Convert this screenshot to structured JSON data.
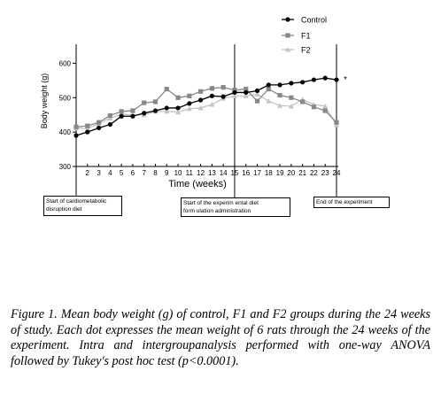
{
  "chart_data": {
    "type": "line",
    "xlabel": "Time (weeks)",
    "ylabel": "Body weight (g)",
    "ylim": [
      300,
      650
    ],
    "yticks": [
      300,
      400,
      500,
      600
    ],
    "x": [
      1,
      2,
      3,
      4,
      5,
      6,
      7,
      8,
      9,
      10,
      11,
      12,
      13,
      14,
      15,
      16,
      17,
      18,
      19,
      20,
      21,
      22,
      23,
      24
    ],
    "xtick_labels": [
      "2",
      "3",
      "4",
      "5",
      "6",
      "7",
      "8",
      "9",
      "10",
      "11",
      "12",
      "13",
      "14",
      "15",
      "16",
      "17",
      "18",
      "19",
      "20",
      "21",
      "22",
      "23",
      "24"
    ],
    "grid": false,
    "legend": "top-right",
    "series": [
      {
        "name": "Control",
        "color": "#000000",
        "marker": "circle",
        "values": [
          390,
          400,
          412,
          422,
          446,
          446,
          455,
          462,
          470,
          470,
          483,
          493,
          505,
          503,
          515,
          515,
          520,
          537,
          537,
          542,
          545,
          552,
          557,
          552
        ]
      },
      {
        "name": "F1",
        "color": "#888888",
        "marker": "square",
        "values": [
          415,
          418,
          428,
          448,
          460,
          462,
          485,
          488,
          525,
          500,
          505,
          518,
          527,
          530,
          522,
          525,
          490,
          525,
          507,
          500,
          488,
          473,
          462,
          428
        ]
      },
      {
        "name": "F2",
        "color": "#c4c4c4",
        "marker": "triangle",
        "values": [
          412,
          410,
          425,
          440,
          452,
          450,
          450,
          460,
          460,
          458,
          468,
          470,
          480,
          498,
          505,
          505,
          510,
          490,
          477,
          475,
          495,
          480,
          475,
          420
        ]
      }
    ],
    "significance_marker": "*",
    "vlines_at_week": [
      1,
      15,
      24
    ]
  },
  "annotations": [
    {
      "lines": [
        "Start of cardiometabolic",
        "disruption diet"
      ]
    },
    {
      "lines": [
        "Start of the experim ental diet",
        "form ulation administration"
      ]
    },
    {
      "lines": [
        "End of the experiment"
      ]
    }
  ],
  "caption": "Figure 1. Mean body weight (g) of control, F1 and F2 groups during the 24 weeks of study. Each dot expresses the mean weight of 6 rats through the 24 weeks of the experiment. Intra and intergroupanalysis performed with one-way ANOVA followed by Tukey's post hoc test (p<0.0001)."
}
